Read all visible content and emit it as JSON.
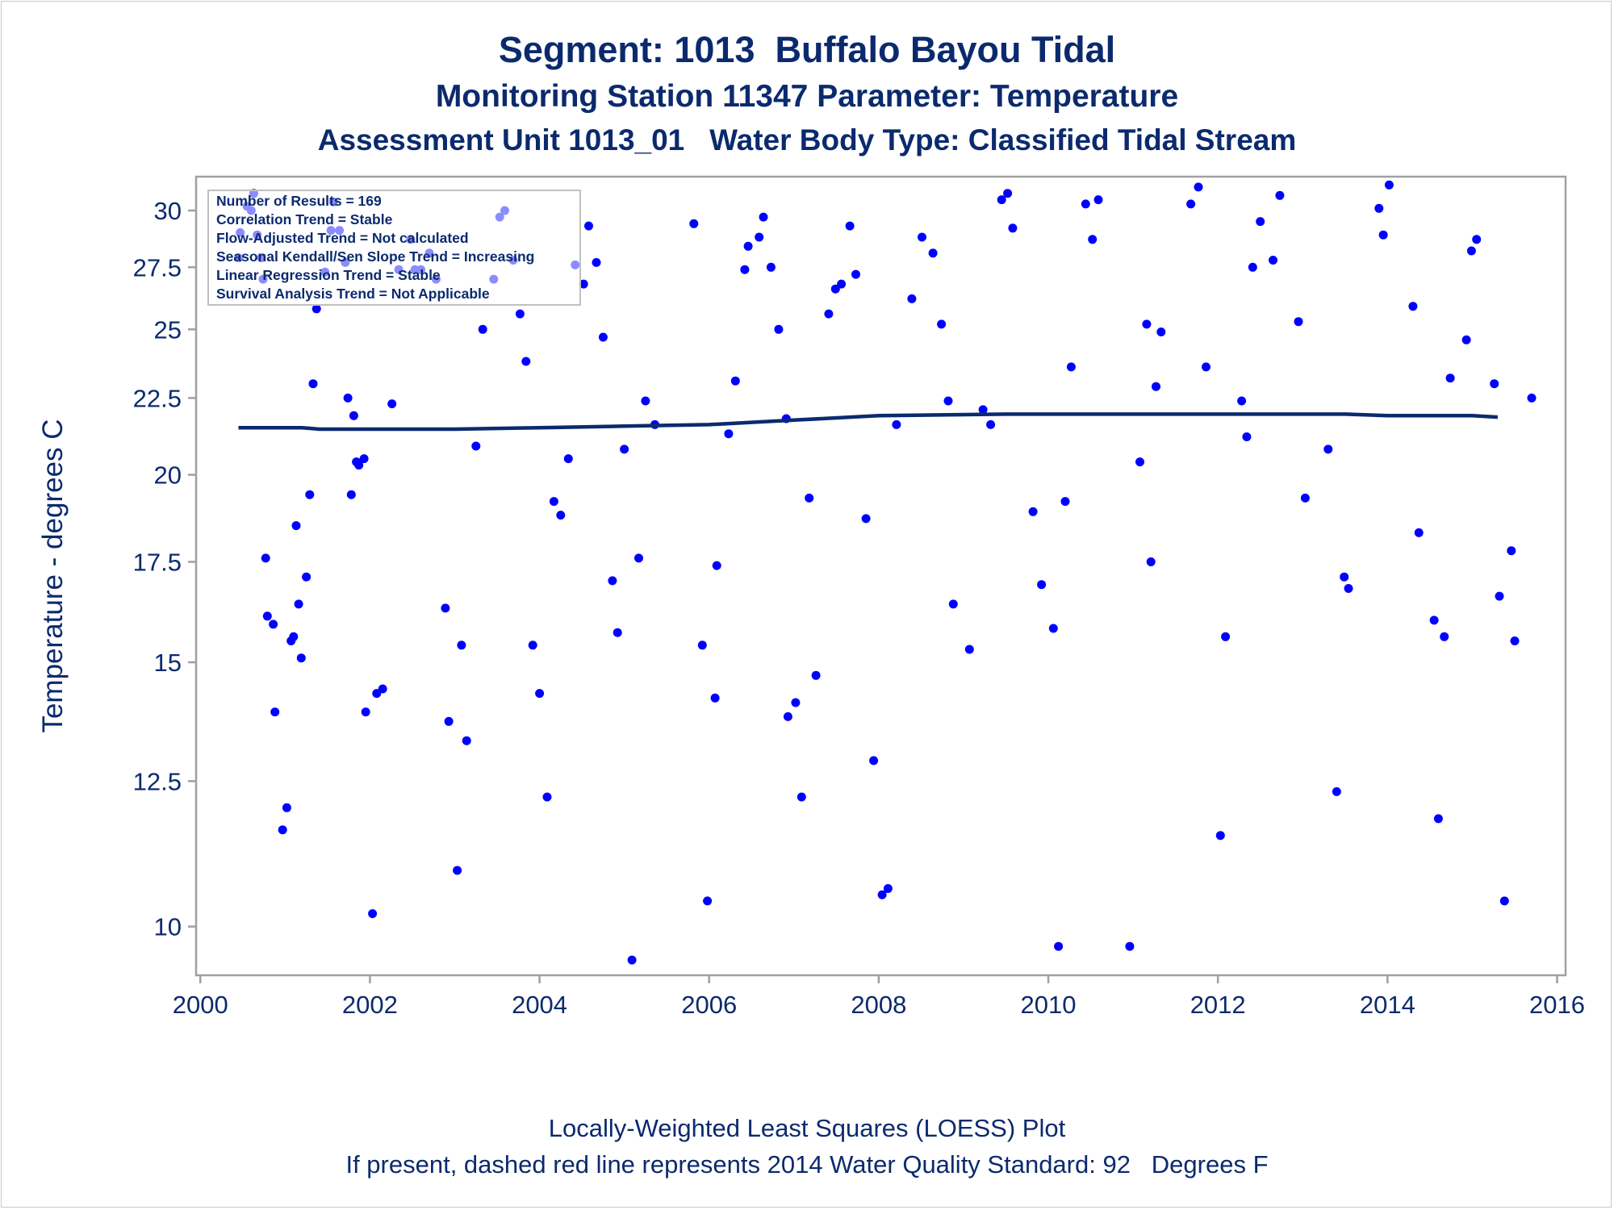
{
  "titles": {
    "line1": "Segment: 1013  Buffalo Bayou Tidal",
    "line2": "Monitoring Station 11347 Parameter: Temperature",
    "line3": "Assessment Unit 1013_01   Water Body Type: Classified Tidal Stream"
  },
  "footnotes": {
    "line1": "Locally-Weighted Least Squares (LOESS) Plot",
    "line2": "If present, dashed red line represents 2014 Water Quality Standard: 92   Degrees F"
  },
  "info_box": [
    "Number of Results = 169",
    "Correlation Trend = Stable",
    "Flow-Adjusted Trend = Not calculated",
    "Seasonal Kendall/Sen Slope Trend = Increasing",
    "Linear Regression Trend = Stable",
    "Survival Analysis Trend = Not Applicable"
  ],
  "colors": {
    "text": "#0b2a6e",
    "points": "#0000ff",
    "loess_line": "#0b2a6e",
    "frame": "#a0a0a0"
  },
  "chart_data": {
    "type": "scatter",
    "ylabel": "Temperature - degrees C",
    "xlabel": "",
    "y_scale": "log",
    "xlim": [
      1999.95,
      2016.1
    ],
    "ylim": [
      9.28,
      31.6
    ],
    "x_ticks": [
      2000,
      2002,
      2004,
      2006,
      2008,
      2010,
      2012,
      2014,
      2016
    ],
    "x_tick_labels": [
      "2000",
      "2002",
      "2004",
      "2006",
      "2008",
      "2010",
      "2012",
      "2014",
      "2016"
    ],
    "y_ticks": [
      10,
      12.5,
      15,
      17.5,
      20,
      22.5,
      25,
      27.5,
      30
    ],
    "y_tick_labels": [
      "10",
      "12.5",
      "15",
      "17.5",
      "20",
      "22.5",
      "25",
      "27.5",
      "30"
    ],
    "grid": false,
    "legend": "top-left",
    "loess": [
      [
        2000.45,
        21.5
      ],
      [
        2001.2,
        21.5
      ],
      [
        2001.4,
        21.45
      ],
      [
        2002.0,
        21.45
      ],
      [
        2003.0,
        21.45
      ],
      [
        2004.0,
        21.5
      ],
      [
        2005.0,
        21.55
      ],
      [
        2006.0,
        21.6
      ],
      [
        2007.0,
        21.75
      ],
      [
        2008.0,
        21.9
      ],
      [
        2009.5,
        21.95
      ],
      [
        2011.0,
        21.95
      ],
      [
        2012.0,
        21.95
      ],
      [
        2013.5,
        21.95
      ],
      [
        2014.0,
        21.9
      ],
      [
        2015.0,
        21.9
      ],
      [
        2015.3,
        21.85
      ]
    ],
    "points": [
      [
        2000.45,
        27.9
      ],
      [
        2000.47,
        29.0
      ],
      [
        2000.55,
        30.2
      ],
      [
        2000.6,
        30.0
      ],
      [
        2000.63,
        30.8
      ],
      [
        2000.67,
        28.9
      ],
      [
        2000.72,
        27.9
      ],
      [
        2000.74,
        27.0
      ],
      [
        2000.77,
        17.6
      ],
      [
        2000.79,
        16.1
      ],
      [
        2000.86,
        15.9
      ],
      [
        2000.88,
        13.9
      ],
      [
        2000.97,
        11.6
      ],
      [
        2001.02,
        12.0
      ],
      [
        2001.07,
        15.5
      ],
      [
        2001.1,
        15.6
      ],
      [
        2001.13,
        18.5
      ],
      [
        2001.16,
        16.4
      ],
      [
        2001.19,
        15.1
      ],
      [
        2001.25,
        17.1
      ],
      [
        2001.29,
        19.4
      ],
      [
        2001.33,
        23.0
      ],
      [
        2001.37,
        25.8
      ],
      [
        2001.47,
        27.3
      ],
      [
        2001.54,
        29.1
      ],
      [
        2001.57,
        30.4
      ],
      [
        2001.64,
        29.1
      ],
      [
        2001.71,
        27.7
      ],
      [
        2001.74,
        22.5
      ],
      [
        2001.78,
        19.4
      ],
      [
        2001.81,
        21.9
      ],
      [
        2001.84,
        20.4
      ],
      [
        2001.87,
        20.3
      ],
      [
        2001.93,
        20.5
      ],
      [
        2001.95,
        13.9
      ],
      [
        2002.03,
        10.2
      ],
      [
        2002.08,
        14.3
      ],
      [
        2002.15,
        14.4
      ],
      [
        2002.26,
        22.3
      ],
      [
        2002.34,
        27.4
      ],
      [
        2002.48,
        28.7
      ],
      [
        2002.53,
        27.4
      ],
      [
        2002.6,
        27.4
      ],
      [
        2002.7,
        28.1
      ],
      [
        2002.78,
        27.0
      ],
      [
        2002.89,
        16.3
      ],
      [
        2002.93,
        13.7
      ],
      [
        2003.03,
        10.9
      ],
      [
        2003.08,
        15.4
      ],
      [
        2003.14,
        13.3
      ],
      [
        2003.25,
        20.9
      ],
      [
        2003.33,
        25.0
      ],
      [
        2003.46,
        27.0
      ],
      [
        2003.53,
        29.7
      ],
      [
        2003.59,
        30.0
      ],
      [
        2003.69,
        27.8
      ],
      [
        2003.77,
        25.6
      ],
      [
        2003.84,
        23.8
      ],
      [
        2003.92,
        15.4
      ],
      [
        2004.0,
        14.3
      ],
      [
        2004.09,
        12.2
      ],
      [
        2004.17,
        19.2
      ],
      [
        2004.25,
        18.8
      ],
      [
        2004.34,
        20.5
      ],
      [
        2004.42,
        27.6
      ],
      [
        2004.52,
        26.8
      ],
      [
        2004.58,
        29.3
      ],
      [
        2004.67,
        27.7
      ],
      [
        2004.75,
        24.7
      ],
      [
        2004.86,
        17.0
      ],
      [
        2004.92,
        15.7
      ],
      [
        2005.0,
        20.8
      ],
      [
        2005.09,
        9.5
      ],
      [
        2005.17,
        17.6
      ],
      [
        2005.25,
        22.4
      ],
      [
        2005.36,
        21.6
      ],
      [
        2005.82,
        29.4
      ],
      [
        2005.92,
        15.4
      ],
      [
        2005.98,
        10.4
      ],
      [
        2006.07,
        14.2
      ],
      [
        2006.09,
        17.4
      ],
      [
        2006.23,
        21.3
      ],
      [
        2006.31,
        23.1
      ],
      [
        2006.42,
        27.4
      ],
      [
        2006.46,
        28.4
      ],
      [
        2006.59,
        28.8
      ],
      [
        2006.64,
        29.7
      ],
      [
        2006.73,
        27.5
      ],
      [
        2006.82,
        25.0
      ],
      [
        2006.91,
        21.8
      ],
      [
        2006.93,
        13.8
      ],
      [
        2007.02,
        14.1
      ],
      [
        2007.09,
        12.2
      ],
      [
        2007.18,
        19.3
      ],
      [
        2007.26,
        14.7
      ],
      [
        2007.41,
        25.6
      ],
      [
        2007.49,
        26.6
      ],
      [
        2007.56,
        26.8
      ],
      [
        2007.66,
        29.3
      ],
      [
        2007.73,
        27.2
      ],
      [
        2007.85,
        18.7
      ],
      [
        2007.94,
        12.9
      ],
      [
        2008.04,
        10.5
      ],
      [
        2008.11,
        10.6
      ],
      [
        2008.21,
        21.6
      ],
      [
        2008.39,
        26.2
      ],
      [
        2008.51,
        28.8
      ],
      [
        2008.64,
        28.1
      ],
      [
        2008.74,
        25.2
      ],
      [
        2008.82,
        22.4
      ],
      [
        2008.88,
        16.4
      ],
      [
        2009.07,
        15.3
      ],
      [
        2009.23,
        22.1
      ],
      [
        2009.32,
        21.6
      ],
      [
        2009.45,
        30.5
      ],
      [
        2009.52,
        30.8
      ],
      [
        2009.58,
        29.2
      ],
      [
        2009.82,
        18.9
      ],
      [
        2009.92,
        16.9
      ],
      [
        2010.06,
        15.8
      ],
      [
        2010.12,
        9.7
      ],
      [
        2010.2,
        19.2
      ],
      [
        2010.27,
        23.6
      ],
      [
        2010.44,
        30.3
      ],
      [
        2010.52,
        28.7
      ],
      [
        2010.59,
        30.5
      ],
      [
        2010.96,
        9.7
      ],
      [
        2011.08,
        20.4
      ],
      [
        2011.16,
        25.2
      ],
      [
        2011.21,
        17.5
      ],
      [
        2011.27,
        22.9
      ],
      [
        2011.33,
        24.9
      ],
      [
        2011.68,
        30.3
      ],
      [
        2011.77,
        31.1
      ],
      [
        2011.86,
        23.6
      ],
      [
        2012.03,
        11.5
      ],
      [
        2012.09,
        15.6
      ],
      [
        2012.28,
        22.4
      ],
      [
        2012.34,
        21.2
      ],
      [
        2012.41,
        27.5
      ],
      [
        2012.5,
        29.5
      ],
      [
        2012.65,
        27.8
      ],
      [
        2012.73,
        30.7
      ],
      [
        2012.95,
        25.3
      ],
      [
        2013.03,
        19.3
      ],
      [
        2013.3,
        20.8
      ],
      [
        2013.4,
        12.3
      ],
      [
        2013.49,
        17.1
      ],
      [
        2013.54,
        16.8
      ],
      [
        2013.9,
        30.1
      ],
      [
        2013.95,
        28.9
      ],
      [
        2014.02,
        31.2
      ],
      [
        2014.3,
        25.9
      ],
      [
        2014.37,
        18.3
      ],
      [
        2014.55,
        16.0
      ],
      [
        2014.6,
        11.8
      ],
      [
        2014.67,
        15.6
      ],
      [
        2014.74,
        23.2
      ],
      [
        2014.93,
        24.6
      ],
      [
        2014.99,
        28.2
      ],
      [
        2015.05,
        28.7
      ],
      [
        2015.26,
        23.0
      ],
      [
        2015.32,
        16.6
      ],
      [
        2015.38,
        10.4
      ],
      [
        2015.46,
        17.8
      ],
      [
        2015.5,
        15.5
      ],
      [
        2015.7,
        22.5
      ]
    ]
  }
}
